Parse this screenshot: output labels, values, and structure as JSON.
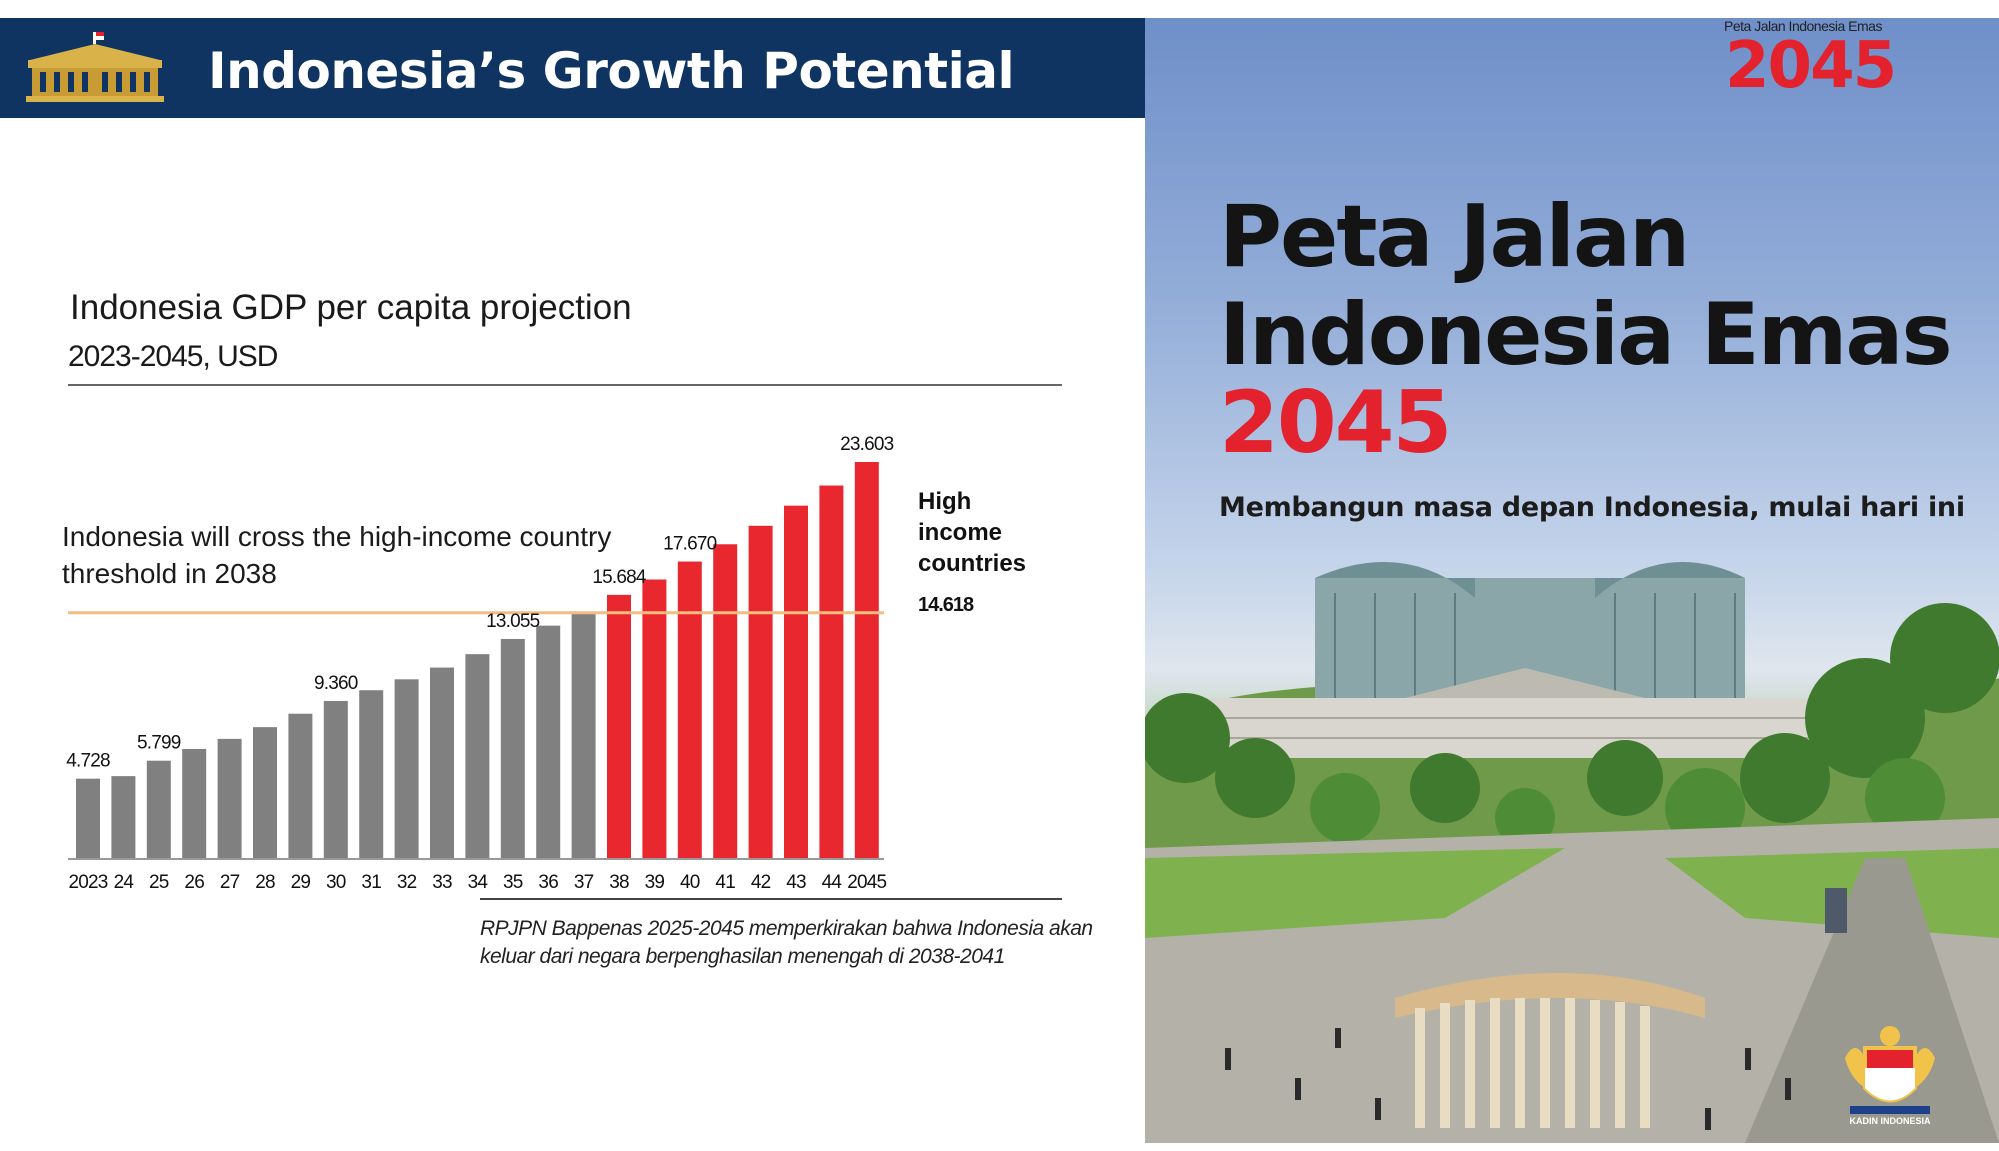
{
  "header": {
    "title": "Indonesia’s Growth Potential",
    "logo_icon": "presidential-palace-icon"
  },
  "chart_data": {
    "type": "bar",
    "title": "Indonesia GDP per capita projection",
    "subtitle": "2023-2045, USD",
    "categories": [
      "2023",
      "24",
      "25",
      "26",
      "27",
      "28",
      "29",
      "30",
      "31",
      "32",
      "33",
      "34",
      "35",
      "36",
      "37",
      "38",
      "39",
      "40",
      "41",
      "42",
      "43",
      "44",
      "2045"
    ],
    "values": [
      4728,
      4880,
      5799,
      6500,
      7100,
      7800,
      8600,
      9360,
      10000,
      10650,
      11350,
      12150,
      13055,
      13850,
      14570,
      15684,
      16600,
      17670,
      18700,
      19800,
      21000,
      22200,
      23603
    ],
    "data_labels": [
      {
        "index": 0,
        "text": "4.728"
      },
      {
        "index": 2,
        "text": "5.799"
      },
      {
        "index": 7,
        "text": "9.360"
      },
      {
        "index": 12,
        "text": "13.055"
      },
      {
        "index": 15,
        "text": "15.684"
      },
      {
        "index": 17,
        "text": "17.670"
      },
      {
        "index": 22,
        "text": "23.603"
      }
    ],
    "threshold": {
      "value": 14618,
      "label": "14.618",
      "name": "High income countries"
    },
    "annotation": "Indonesia will cross the high-income country threshold in 2038",
    "colors": {
      "projected_before": "#808080",
      "projected_high_income": "#e8272f",
      "threshold_line": "#f2bd7e"
    },
    "ylim": [
      0,
      25000
    ],
    "xlabel": "",
    "ylabel": "",
    "grid": false
  },
  "footnote": "RPJPN Bappenas 2025-2045 memperkirakan bahwa Indonesia akan keluar dari negara berpenghasilan menengah di 2038-2041",
  "poster": {
    "small_caption": "Peta Jalan Indonesia Emas",
    "logo_year": "2045",
    "title_line1": "Peta Jalan",
    "title_line2": "Indonesia Emas",
    "year": "2045",
    "tagline": "Membangun masa depan Indonesia, mulai hari ini",
    "logo_icon": "kadin-indonesia-emblem-icon",
    "logo_caption": "KADIN INDONESIA",
    "colors": {
      "accent": "#e3222d"
    }
  }
}
